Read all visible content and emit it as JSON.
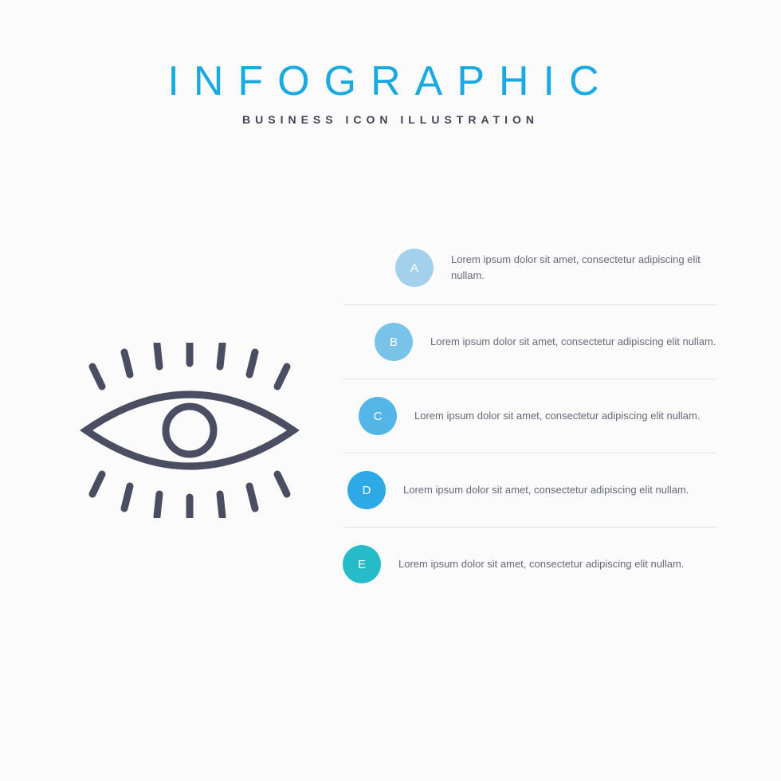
{
  "header": {
    "title": "INFOGRAPHIC",
    "subtitle": "BUSINESS ICON ILLUSTRATION",
    "title_color": "#1ba9e1",
    "subtitle_color": "#424559"
  },
  "icon": {
    "name": "eye-icon",
    "stroke_color": "#4b4e63",
    "stroke_width": 9
  },
  "steps": [
    {
      "letter": "A",
      "color": "#a3d1ec",
      "offset_class": "offset-1",
      "text": "Lorem ipsum dolor sit amet, consectetur adipiscing elit nullam."
    },
    {
      "letter": "B",
      "color": "#79c2e8",
      "offset_class": "offset-2",
      "text": "Lorem ipsum dolor sit amet, consectetur adipiscing elit nullam."
    },
    {
      "letter": "C",
      "color": "#53b6e7",
      "offset_class": "offset-3",
      "text": "Lorem ipsum dolor sit amet, consectetur adipiscing elit nullam."
    },
    {
      "letter": "D",
      "color": "#2da9e5",
      "offset_class": "offset-4",
      "text": "Lorem ipsum dolor sit amet, consectetur adipiscing elit nullam."
    },
    {
      "letter": "E",
      "color": "#25bbc9",
      "offset_class": "offset-5",
      "text": "Lorem ipsum dolor sit amet, consectetur adipiscing elit nullam."
    }
  ],
  "layout": {
    "background": "#fbfbfb",
    "divider_color": "#e4e4e4",
    "text_color": "#666a7a",
    "circle_size": 48,
    "title_fontsize": 52,
    "title_letterspacing": 18,
    "subtitle_fontsize": 14,
    "step_fontsize": 13
  }
}
